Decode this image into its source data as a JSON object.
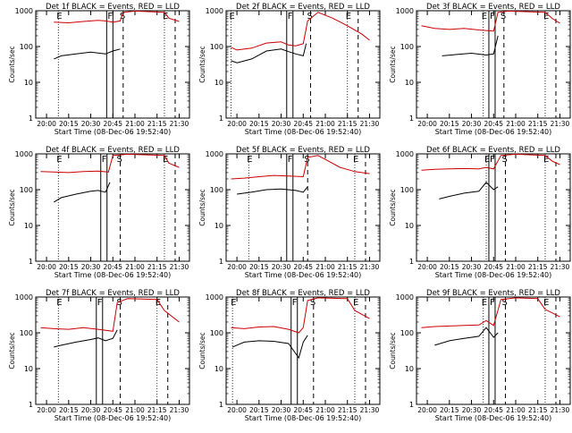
{
  "chart_data": [
    {
      "type": "line",
      "title": "Det 1f BLACK = Events, RED = LLD",
      "ylabel": "Counts/sec",
      "xlabel": "Start Time (08-Dec-06 19:52:40)",
      "x_ticks": [
        "20:00",
        "20:15",
        "20:30",
        "20:45",
        "21:00",
        "21:15",
        "21:30"
      ],
      "y_ticks": [
        "1",
        "10",
        "100",
        "1000"
      ],
      "ylim": [
        1,
        1000
      ],
      "y_scale": "log",
      "markers": {
        "E": "20:08",
        "F": "20:42",
        "S": "20:52",
        "E2": "21:20"
      },
      "series": [
        {
          "color": "#000000",
          "points": [
            [
              "20:05",
              45
            ],
            [
              "20:10",
              55
            ],
            [
              "20:20",
              62
            ],
            [
              "20:30",
              70
            ],
            [
              "20:40",
              62
            ],
            [
              "20:45",
              75
            ],
            [
              "20:50",
              85
            ]
          ]
        },
        {
          "color": "#cc0000",
          "points": [
            [
              "20:05",
              480
            ],
            [
              "20:15",
              460
            ],
            [
              "20:25",
              500
            ],
            [
              "20:35",
              540
            ],
            [
              "20:40",
              520
            ],
            [
              "20:45",
              480
            ],
            [
              "20:50",
              520
            ],
            [
              "20:52",
              900
            ],
            [
              "21:00",
              980
            ],
            [
              "21:20",
              900
            ],
            [
              "21:23",
              620
            ],
            [
              "21:30",
              500
            ]
          ]
        }
      ]
    },
    {
      "type": "line",
      "title": "Det 2f BLACK = Events, RED = LLD",
      "ylabel": "Counts/sec",
      "xlabel": "Start Time (08-Dec-06 19:52:40)",
      "x_ticks": [
        "20:00",
        "20:15",
        "20:30",
        "20:45",
        "21:00",
        "21:15",
        "21:30"
      ],
      "y_ticks": [
        "1",
        "10",
        "100",
        "1000"
      ],
      "ylim": [
        1,
        1000
      ],
      "y_scale": "log",
      "markers": {
        "E": "19:56",
        "F": "20:35",
        "S": "20:50",
        "E2": "21:15"
      },
      "series": [
        {
          "color": "#000000",
          "points": [
            [
              "19:56",
              40
            ],
            [
              "20:00",
              35
            ],
            [
              "20:10",
              45
            ],
            [
              "20:20",
              75
            ],
            [
              "20:30",
              85
            ],
            [
              "20:35",
              72
            ],
            [
              "20:40",
              62
            ],
            [
              "20:45",
              55
            ],
            [
              "20:47",
              120
            ]
          ]
        },
        {
          "color": "#cc0000",
          "points": [
            [
              "19:56",
              95
            ],
            [
              "20:00",
              80
            ],
            [
              "20:10",
              90
            ],
            [
              "20:20",
              125
            ],
            [
              "20:30",
              135
            ],
            [
              "20:35",
              110
            ],
            [
              "20:40",
              105
            ],
            [
              "20:45",
              120
            ],
            [
              "20:48",
              520
            ],
            [
              "20:55",
              900
            ],
            [
              "21:05",
              620
            ],
            [
              "21:15",
              380
            ],
            [
              "21:25",
              220
            ],
            [
              "21:30",
              150
            ]
          ]
        }
      ]
    },
    {
      "type": "line",
      "title": "Det 3f BLACK = Events, RED = LLD",
      "ylabel": "Counts/sec",
      "xlabel": "Start Time (08-Dec-06 19:52:40)",
      "x_ticks": [
        "20:00",
        "20:15",
        "20:30",
        "20:45",
        "21:00",
        "21:15",
        "21:30"
      ],
      "y_ticks": [
        "1",
        "10",
        "100",
        "1000"
      ],
      "ylim": [
        1,
        1000
      ],
      "y_scale": "log",
      "markers": {
        "E": "20:38",
        "F": "20:43",
        "S": "20:52",
        "E2": "21:20"
      },
      "series": [
        {
          "color": "#000000",
          "points": [
            [
              "20:10",
              55
            ],
            [
              "20:20",
              60
            ],
            [
              "20:30",
              65
            ],
            [
              "20:40",
              58
            ],
            [
              "20:45",
              62
            ],
            [
              "20:48",
              200
            ]
          ]
        },
        {
          "color": "#cc0000",
          "points": [
            [
              "19:56",
              380
            ],
            [
              "20:05",
              320
            ],
            [
              "20:15",
              300
            ],
            [
              "20:25",
              320
            ],
            [
              "20:35",
              290
            ],
            [
              "20:45",
              270
            ],
            [
              "20:48",
              900
            ],
            [
              "20:55",
              980
            ],
            [
              "21:20",
              900
            ],
            [
              "21:25",
              600
            ],
            [
              "21:30",
              450
            ]
          ]
        }
      ]
    },
    {
      "type": "line",
      "title": "Det 4f BLACK = Events, RED = LLD",
      "ylabel": "Counts/sec",
      "xlabel": "Start Time (08-Dec-06 19:52:40)",
      "x_ticks": [
        "20:00",
        "20:15",
        "20:30",
        "20:45",
        "21:00",
        "21:15",
        "21:30"
      ],
      "y_ticks": [
        "1",
        "10",
        "100",
        "1000"
      ],
      "ylim": [
        1,
        1000
      ],
      "y_scale": "log",
      "markers": {
        "E": "20:08",
        "F": "20:38",
        "S": "20:50",
        "E2": "21:20"
      },
      "series": [
        {
          "color": "#000000",
          "points": [
            [
              "20:05",
              45
            ],
            [
              "20:10",
              60
            ],
            [
              "20:20",
              75
            ],
            [
              "20:30",
              90
            ],
            [
              "20:35",
              95
            ],
            [
              "20:40",
              85
            ],
            [
              "20:43",
              160
            ]
          ]
        },
        {
          "color": "#cc0000",
          "points": [
            [
              "19:56",
              320
            ],
            [
              "20:05",
              310
            ],
            [
              "20:15",
              300
            ],
            [
              "20:25",
              320
            ],
            [
              "20:35",
              330
            ],
            [
              "20:42",
              310
            ],
            [
              "20:45",
              900
            ],
            [
              "20:55",
              980
            ],
            [
              "21:20",
              900
            ],
            [
              "21:23",
              550
            ],
            [
              "21:30",
              420
            ]
          ]
        }
      ]
    },
    {
      "type": "line",
      "title": "Det 5f BLACK = Events, RED = LLD",
      "ylabel": "Counts/sec",
      "xlabel": "Start Time (08-Dec-06 19:52:40)",
      "x_ticks": [
        "20:00",
        "20:15",
        "20:30",
        "20:45",
        "21:00",
        "21:15",
        "21:30"
      ],
      "y_ticks": [
        "1",
        "10",
        "100",
        "1000"
      ],
      "ylim": [
        1,
        1000
      ],
      "y_scale": "log",
      "markers": {
        "E": "20:08",
        "F": "20:35",
        "S": "20:48",
        "E2": "21:20"
      },
      "series": [
        {
          "color": "#000000",
          "points": [
            [
              "20:00",
              75
            ],
            [
              "20:10",
              85
            ],
            [
              "20:20",
              100
            ],
            [
              "20:30",
              105
            ],
            [
              "20:40",
              95
            ],
            [
              "20:45",
              85
            ],
            [
              "20:48",
              120
            ]
          ]
        },
        {
          "color": "#cc0000",
          "points": [
            [
              "19:56",
              200
            ],
            [
              "20:05",
              210
            ],
            [
              "20:15",
              230
            ],
            [
              "20:25",
              250
            ],
            [
              "20:35",
              240
            ],
            [
              "20:45",
              230
            ],
            [
              "20:48",
              800
            ],
            [
              "20:55",
              900
            ],
            [
              "21:00",
              700
            ],
            [
              "21:10",
              420
            ],
            [
              "21:20",
              320
            ],
            [
              "21:30",
              280
            ]
          ]
        }
      ]
    },
    {
      "type": "line",
      "title": "Det 6f BLACK = Events, RED = LLD",
      "ylabel": "Counts/sec",
      "xlabel": "Start Time (08-Dec-06 19:52:40)",
      "x_ticks": [
        "20:00",
        "20:15",
        "20:30",
        "20:45",
        "21:00",
        "21:15",
        "21:30"
      ],
      "y_ticks": [
        "1",
        "10",
        "100",
        "1000"
      ],
      "ylim": [
        1,
        1000
      ],
      "y_scale": "log",
      "markers": {
        "E": "20:40",
        "F": "20:43",
        "S": "20:53",
        "E2": "21:20"
      },
      "series": [
        {
          "color": "#000000",
          "points": [
            [
              "20:08",
              55
            ],
            [
              "20:15",
              65
            ],
            [
              "20:25",
              80
            ],
            [
              "20:35",
              90
            ],
            [
              "20:40",
              160
            ],
            [
              "20:45",
              100
            ],
            [
              "20:48",
              120
            ]
          ]
        },
        {
          "color": "#cc0000",
          "points": [
            [
              "19:56",
              350
            ],
            [
              "20:05",
              370
            ],
            [
              "20:15",
              380
            ],
            [
              "20:25",
              390
            ],
            [
              "20:35",
              380
            ],
            [
              "20:40",
              420
            ],
            [
              "20:45",
              380
            ],
            [
              "20:50",
              900
            ],
            [
              "21:00",
              980
            ],
            [
              "21:20",
              900
            ],
            [
              "21:25",
              620
            ],
            [
              "21:30",
              500
            ]
          ]
        }
      ]
    },
    {
      "type": "line",
      "title": "Det 7f BLACK = Events, RED = LLD",
      "ylabel": "Counts/sec",
      "xlabel": "Start Time (08-Dec-06 19:52:40)",
      "x_ticks": [
        "20:00",
        "20:15",
        "20:30",
        "20:45",
        "21:00",
        "21:15",
        "21:30"
      ],
      "y_ticks": [
        "1",
        "10",
        "100",
        "1000"
      ],
      "ylim": [
        1,
        1000
      ],
      "y_scale": "log",
      "markers": {
        "E": "20:08",
        "F": "20:35",
        "S": "20:50",
        "E2": "21:15"
      },
      "series": [
        {
          "color": "#000000",
          "points": [
            [
              "20:05",
              40
            ],
            [
              "20:10",
              45
            ],
            [
              "20:20",
              55
            ],
            [
              "20:30",
              65
            ],
            [
              "20:35",
              72
            ],
            [
              "20:40",
              60
            ],
            [
              "20:45",
              70
            ],
            [
              "20:48",
              120
            ]
          ]
        },
        {
          "color": "#cc0000",
          "points": [
            [
              "19:56",
              140
            ],
            [
              "20:05",
              130
            ],
            [
              "20:15",
              125
            ],
            [
              "20:25",
              140
            ],
            [
              "20:35",
              125
            ],
            [
              "20:45",
              110
            ],
            [
              "20:48",
              700
            ],
            [
              "20:55",
              900
            ],
            [
              "21:15",
              850
            ],
            [
              "21:20",
              420
            ],
            [
              "21:30",
              200
            ]
          ]
        }
      ]
    },
    {
      "type": "line",
      "title": "Det 8f BLACK = Events, RED = LLD",
      "ylabel": "Counts/sec",
      "xlabel": "Start Time (08-Dec-06 19:52:40)",
      "x_ticks": [
        "20:00",
        "20:15",
        "20:30",
        "20:45",
        "21:00",
        "21:15",
        "21:30"
      ],
      "y_ticks": [
        "1",
        "10",
        "100",
        "1000"
      ],
      "ylim": [
        1,
        1000
      ],
      "y_scale": "log",
      "markers": {
        "E": "19:57",
        "F": "20:38",
        "S": "20:52",
        "E2": "21:20"
      },
      "series": [
        {
          "color": "#000000",
          "points": [
            [
              "19:57",
              40
            ],
            [
              "20:05",
              55
            ],
            [
              "20:15",
              60
            ],
            [
              "20:25",
              58
            ],
            [
              "20:35",
              50
            ],
            [
              "20:42",
              20
            ],
            [
              "20:45",
              55
            ],
            [
              "20:48",
              85
            ]
          ]
        },
        {
          "color": "#cc0000",
          "points": [
            [
              "19:56",
              140
            ],
            [
              "20:05",
              130
            ],
            [
              "20:15",
              145
            ],
            [
              "20:25",
              150
            ],
            [
              "20:35",
              125
            ],
            [
              "20:42",
              100
            ],
            [
              "20:45",
              140
            ],
            [
              "20:48",
              800
            ],
            [
              "20:55",
              950
            ],
            [
              "21:15",
              900
            ],
            [
              "21:20",
              420
            ],
            [
              "21:30",
              250
            ]
          ]
        }
      ]
    },
    {
      "type": "line",
      "title": "Det 9f BLACK = Events, RED = LLD",
      "ylabel": "Counts/sec",
      "xlabel": "Start Time (08-Dec-06 19:52:40)",
      "x_ticks": [
        "20:00",
        "20:15",
        "20:30",
        "20:45",
        "21:00",
        "21:15",
        "21:30"
      ],
      "y_ticks": [
        "1",
        "10",
        "100",
        "1000"
      ],
      "ylim": [
        1,
        1000
      ],
      "y_scale": "log",
      "markers": {
        "E": "20:38",
        "F": "20:43",
        "S": "20:53",
        "E2": "21:20"
      },
      "series": [
        {
          "color": "#000000",
          "points": [
            [
              "20:05",
              45
            ],
            [
              "20:15",
              60
            ],
            [
              "20:25",
              70
            ],
            [
              "20:35",
              80
            ],
            [
              "20:40",
              140
            ],
            [
              "20:45",
              75
            ],
            [
              "20:48",
              100
            ]
          ]
        },
        {
          "color": "#cc0000",
          "points": [
            [
              "19:56",
              140
            ],
            [
              "20:05",
              150
            ],
            [
              "20:15",
              155
            ],
            [
              "20:25",
              160
            ],
            [
              "20:35",
              165
            ],
            [
              "20:40",
              220
            ],
            [
              "20:45",
              160
            ],
            [
              "20:50",
              850
            ],
            [
              "21:00",
              950
            ],
            [
              "21:15",
              900
            ],
            [
              "21:20",
              450
            ],
            [
              "21:30",
              280
            ]
          ]
        }
      ]
    }
  ]
}
